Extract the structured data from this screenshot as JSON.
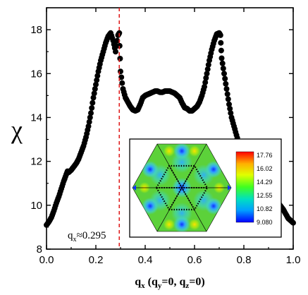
{
  "chart_data": {
    "type": "scatter",
    "title": "",
    "ylabel": "χ",
    "xlabel": {
      "main": "q",
      "main_sub": "x",
      "paren_open": " (q",
      "sub_y": "y",
      "mid": "=0, q",
      "sub_z": "z",
      "close": "=0)"
    },
    "xlim": [
      0.0,
      1.0
    ],
    "ylim": [
      8,
      19
    ],
    "x_ticks": [
      "0.0",
      "0.2",
      "0.4",
      "0.6",
      "0.8",
      "1.0"
    ],
    "y_ticks": [
      "8",
      "10",
      "12",
      "14",
      "16",
      "18"
    ],
    "marker_color": "#000000",
    "annotation": {
      "label_main": "q",
      "label_sub": "x",
      "label_value": "≈0.295",
      "vline_x": 0.295,
      "vline_color": "#e02020"
    },
    "points_x": [
      0.0,
      0.01,
      0.02,
      0.03,
      0.04,
      0.05,
      0.06,
      0.07,
      0.08,
      0.085,
      0.09,
      0.1,
      0.11,
      0.12,
      0.13,
      0.14,
      0.15,
      0.16,
      0.17,
      0.18,
      0.19,
      0.2,
      0.21,
      0.22,
      0.23,
      0.24,
      0.25,
      0.26,
      0.27,
      0.28,
      0.29,
      0.295,
      0.3,
      0.31,
      0.32,
      0.33,
      0.34,
      0.35,
      0.36,
      0.37,
      0.38,
      0.39,
      0.4,
      0.41,
      0.42,
      0.43,
      0.44,
      0.45,
      0.46,
      0.47,
      0.48,
      0.49,
      0.5,
      0.51,
      0.52,
      0.53,
      0.54,
      0.55,
      0.56,
      0.57,
      0.58,
      0.59,
      0.6,
      0.61,
      0.62,
      0.63,
      0.64,
      0.65,
      0.66,
      0.67,
      0.68,
      0.69,
      0.7,
      0.705,
      0.71,
      0.72,
      0.73,
      0.74,
      0.75,
      0.76,
      0.77,
      0.78,
      0.79,
      0.8,
      0.81,
      0.82,
      0.83,
      0.84,
      0.85,
      0.86,
      0.87,
      0.88,
      0.89,
      0.9,
      0.91,
      0.915,
      0.92,
      0.93,
      0.94,
      0.95,
      0.96,
      0.97,
      0.98,
      0.99,
      1.0
    ],
    "points_y": [
      9.1,
      9.25,
      9.45,
      9.75,
      10.1,
      10.4,
      10.75,
      11.1,
      11.4,
      11.55,
      11.5,
      11.6,
      11.75,
      11.9,
      12.1,
      12.4,
      12.7,
      13.1,
      13.6,
      14.2,
      14.9,
      15.5,
      16.1,
      16.6,
      17.0,
      17.4,
      17.7,
      17.85,
      17.5,
      17.0,
      17.75,
      17.85,
      16.1,
      15.3,
      14.9,
      14.7,
      14.5,
      14.35,
      14.3,
      14.35,
      14.6,
      14.9,
      15.0,
      15.05,
      15.1,
      15.15,
      15.2,
      15.2,
      15.15,
      15.15,
      15.2,
      15.2,
      15.2,
      15.15,
      15.1,
      15.0,
      14.9,
      14.65,
      14.45,
      14.4,
      14.3,
      14.3,
      14.4,
      14.5,
      14.7,
      15.0,
      15.4,
      16.0,
      16.6,
      17.1,
      17.5,
      17.8,
      17.85,
      17.75,
      16.7,
      16.0,
      15.3,
      14.6,
      14.0,
      13.6,
      13.2,
      12.8,
      12.45,
      12.15,
      11.95,
      11.8,
      11.7,
      11.6,
      11.5,
      11.4,
      11.35,
      11.3,
      11.25,
      11.2,
      11.15,
      11.1,
      10.6,
      10.3,
      10.1,
      9.95,
      9.8,
      9.6,
      9.4,
      9.3,
      9.2
    ]
  },
  "inset": {
    "colorbar_labels": [
      "17.76",
      "16.02",
      "14.29",
      "12.55",
      "10.82",
      "9.080"
    ],
    "colorbar_colors": [
      "#ff0000",
      "#ffb000",
      "#e0ff00",
      "#40ff20",
      "#00e0c0",
      "#00a0ff",
      "#0000ff"
    ],
    "background_color": "#5cd13a"
  }
}
